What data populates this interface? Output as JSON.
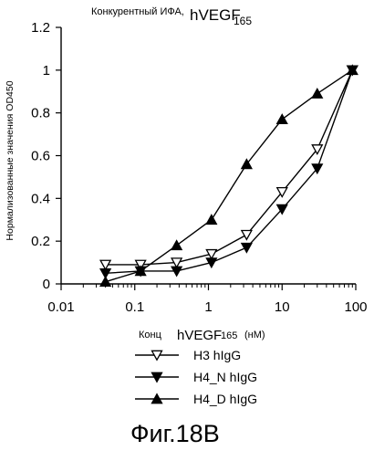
{
  "chart_data": {
    "type": "line",
    "title": {
      "prefix": "Конкурентный ИФА,",
      "main": "hVEGF",
      "sub": "165"
    },
    "ylabel": "Нормализованные значения OD450",
    "xlabel": {
      "prefix": "Конц",
      "main": "hVEGF",
      "sub": "165",
      "suffix": "(нМ)"
    },
    "x_scale": "log",
    "xlim": [
      0.01,
      100
    ],
    "ylim": [
      0,
      1.2
    ],
    "x_ticks": [
      0.01,
      0.1,
      1,
      10,
      100
    ],
    "x_tick_labels": [
      "0.01",
      "0.1",
      "1",
      "10",
      "100"
    ],
    "y_ticks": [
      0,
      0.2,
      0.4,
      0.6,
      0.8,
      1,
      1.2
    ],
    "y_tick_labels": [
      "0",
      "0.2",
      "0.4",
      "0.6",
      "0.8",
      "1",
      "1.2"
    ],
    "x": [
      0.04,
      0.12,
      0.37,
      1.1,
      3.3,
      10,
      30,
      90
    ],
    "series": [
      {
        "name": "H3 hIgG",
        "marker": "triangle-down-open",
        "values": [
          0.09,
          0.09,
          0.1,
          0.14,
          0.23,
          0.43,
          0.63,
          1.0
        ]
      },
      {
        "name": "H4_N hIgG",
        "marker": "triangle-down-filled",
        "values": [
          0.05,
          0.06,
          0.06,
          0.1,
          0.17,
          0.35,
          0.54,
          1.0
        ]
      },
      {
        "name": "H4_D hIgG",
        "marker": "triangle-up-filled",
        "values": [
          0.01,
          0.06,
          0.18,
          0.3,
          0.56,
          0.77,
          0.89,
          1.0
        ]
      }
    ],
    "legend_placement": "bottom-left",
    "grid": false
  },
  "caption": "Фиг.18B"
}
